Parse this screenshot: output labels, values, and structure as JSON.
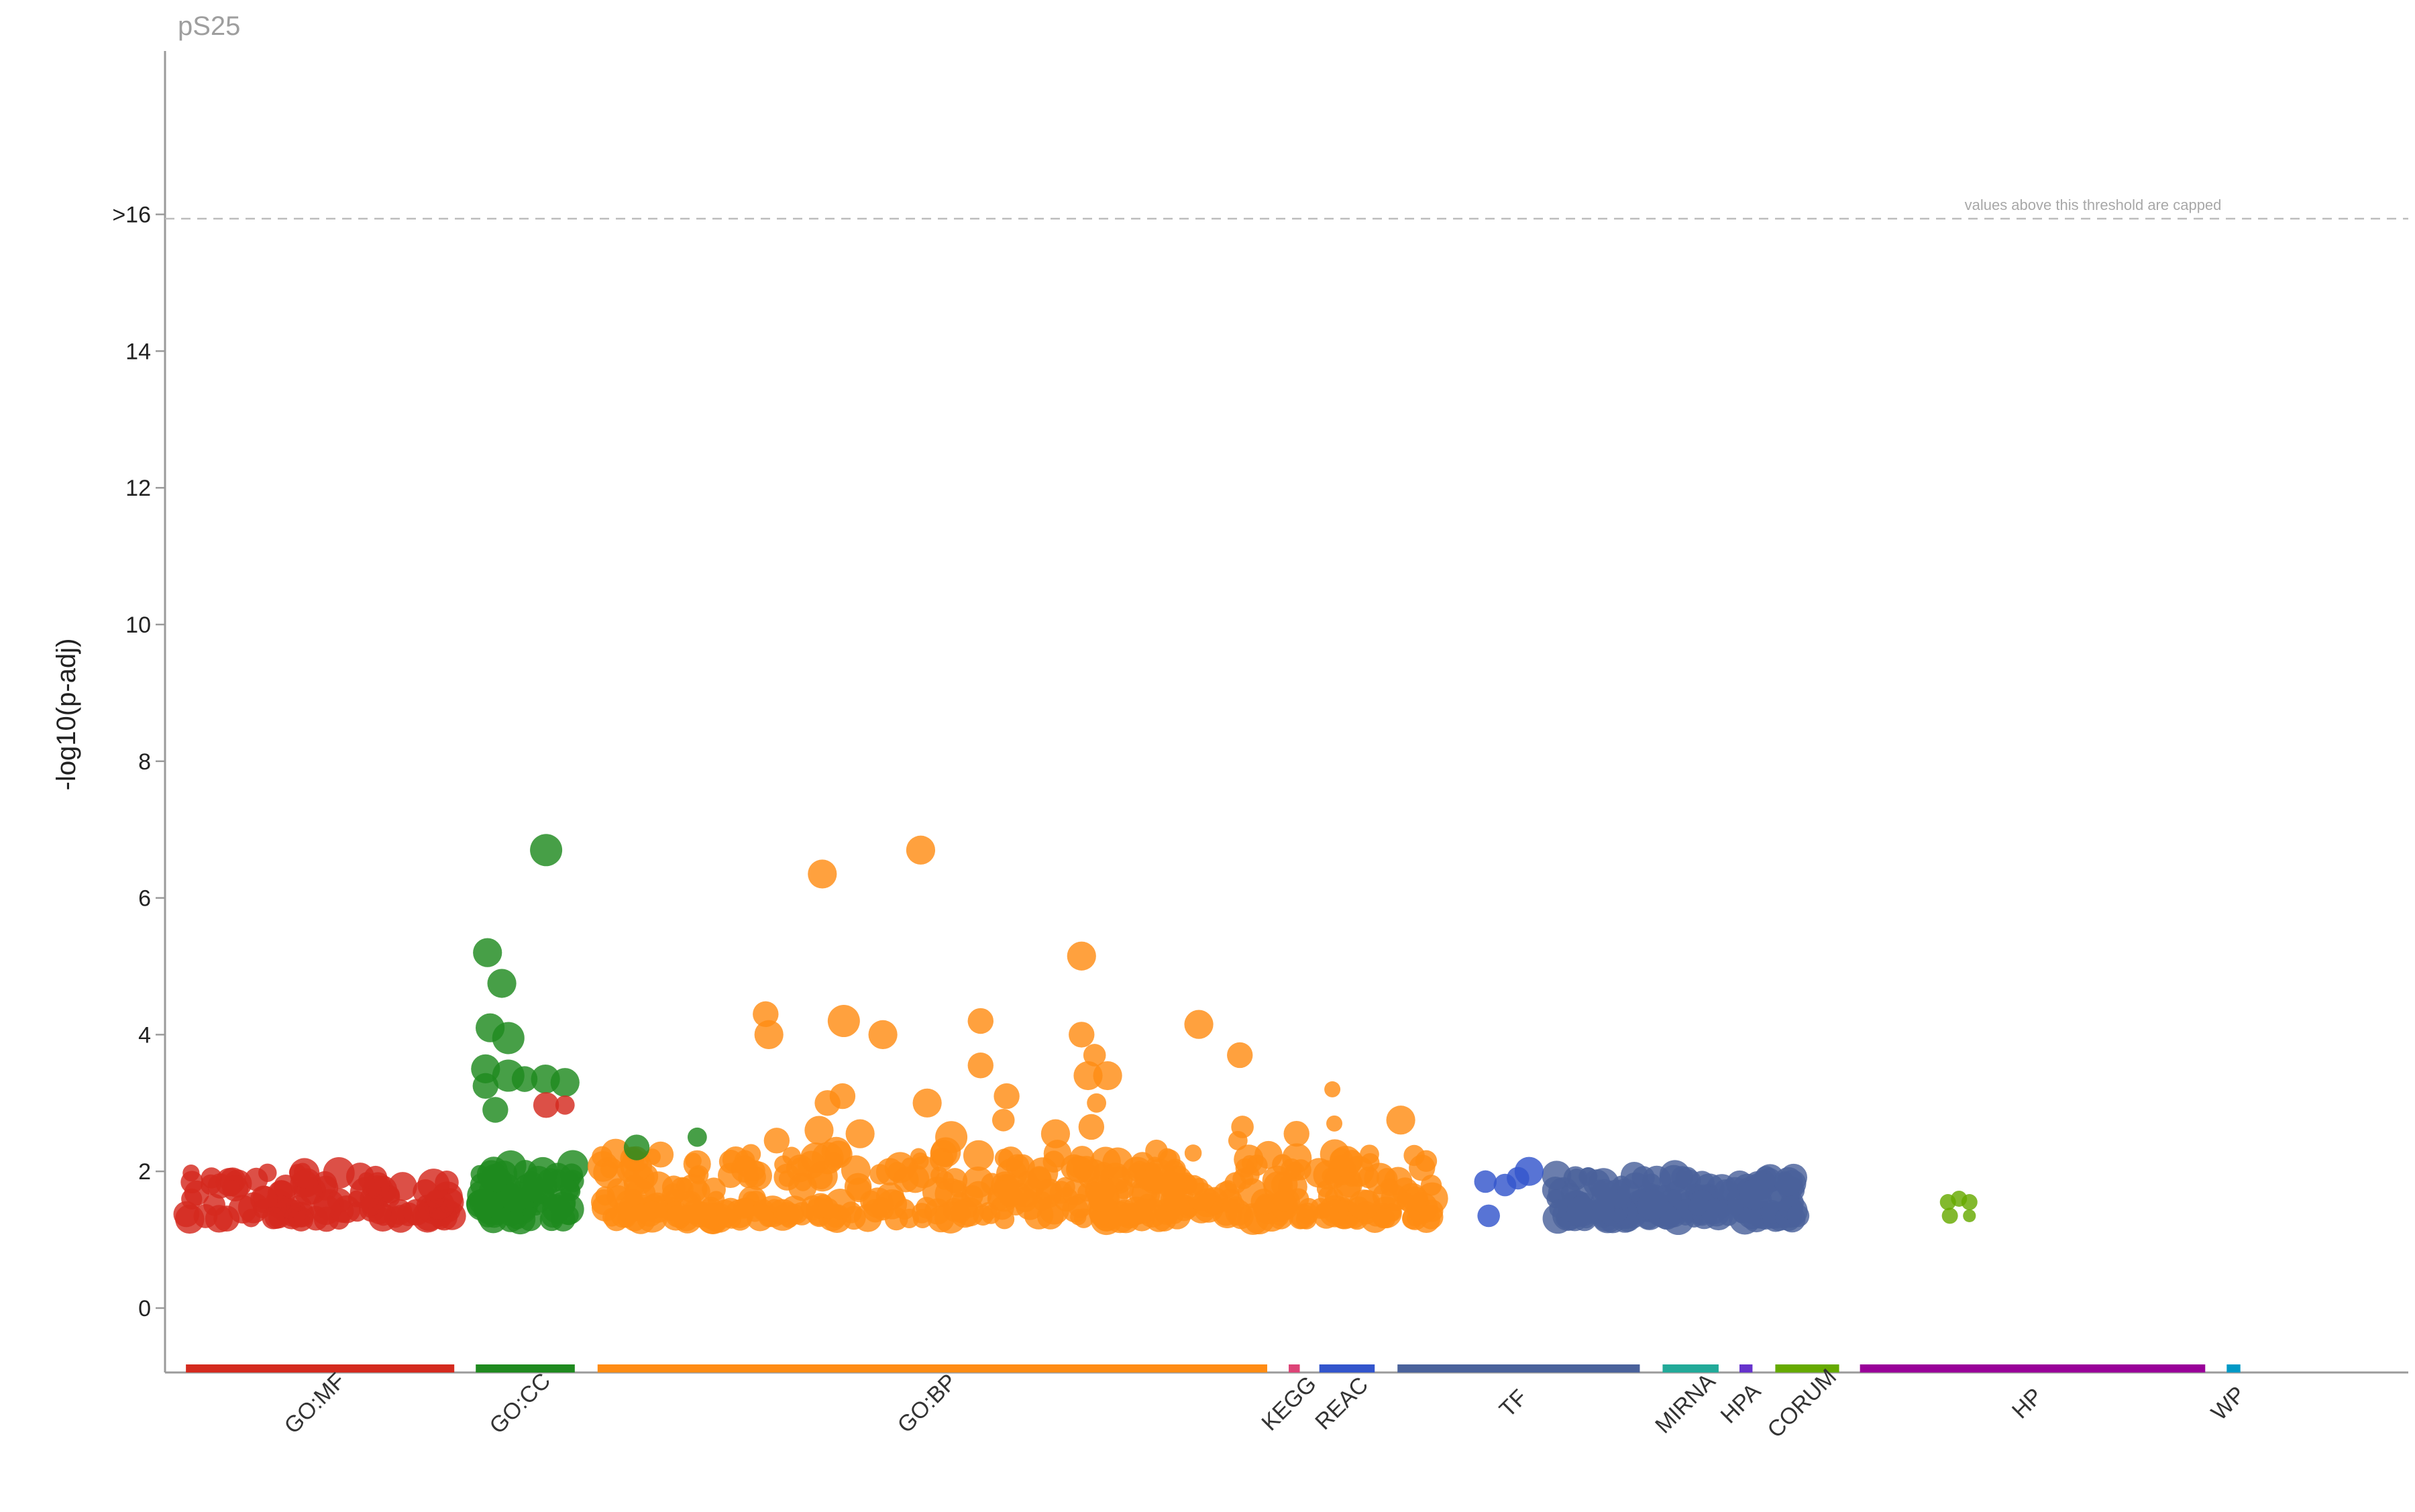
{
  "chart_data": {
    "type": "scatter",
    "title": "pS25",
    "ylabel": "-log10(p-adj)",
    "xlabel": "",
    "ylim": [
      -1,
      18.5
    ],
    "yticks": [
      {
        "value": 0,
        "label": "0"
      },
      {
        "value": 2,
        "label": "2"
      },
      {
        "value": 4,
        "label": "4"
      },
      {
        "value": 6,
        "label": "6"
      },
      {
        "value": 8,
        "label": "8"
      },
      {
        "value": 10,
        "label": "10"
      },
      {
        "value": 12,
        "label": "12"
      },
      {
        "value": 14,
        "label": "14"
      },
      {
        "value": 16,
        "label": ">16"
      }
    ],
    "threshold": {
      "value": 16,
      "note": "values above this threshold are capped"
    },
    "grid": false,
    "legend": "none",
    "x_range": [
      0,
      3450
    ],
    "sources": [
      {
        "name": "GO:MF",
        "color": "#d42a1e",
        "start": 30,
        "end": 442
      },
      {
        "name": "GO:CC",
        "color": "#1f8a1f",
        "start": 475,
        "end": 627
      },
      {
        "name": "GO:BP",
        "color": "#ff8c14",
        "start": 662,
        "end": 1690
      },
      {
        "name": "KEGG",
        "color": "#dd4477",
        "start": 1723,
        "end": 1740
      },
      {
        "name": "REAC",
        "color": "#3355cc",
        "start": 1770,
        "end": 1855
      },
      {
        "name": "TF",
        "color": "#4a629b",
        "start": 1890,
        "end": 2262
      },
      {
        "name": "MIRNA",
        "color": "#22aa99",
        "start": 2297,
        "end": 2383
      },
      {
        "name": "HPA",
        "color": "#6633cc",
        "start": 2415,
        "end": 2435
      },
      {
        "name": "CORUM",
        "color": "#66aa00",
        "start": 2470,
        "end": 2568
      },
      {
        "name": "HP",
        "color": "#990099",
        "start": 2600,
        "end": 3130
      },
      {
        "name": "WP",
        "color": "#0099c6",
        "start": 3163,
        "end": 3184
      }
    ],
    "highlighted_points": [
      {
        "source": "GO:CC",
        "x": 583,
        "y": 6.7,
        "size": 10
      },
      {
        "source": "GO:BP",
        "x": 1158,
        "y": 6.7,
        "size": 9
      },
      {
        "source": "GO:BP",
        "x": 1007,
        "y": 6.35,
        "size": 9
      },
      {
        "source": "GO:CC",
        "x": 493,
        "y": 5.2,
        "size": 9
      },
      {
        "source": "GO:BP",
        "x": 1405,
        "y": 5.15,
        "size": 9
      },
      {
        "source": "GO:CC",
        "x": 515,
        "y": 4.75,
        "size": 9
      },
      {
        "source": "GO:BP",
        "x": 920,
        "y": 4.3,
        "size": 8
      },
      {
        "source": "GO:BP",
        "x": 1040,
        "y": 4.2,
        "size": 10
      },
      {
        "source": "GO:BP",
        "x": 1250,
        "y": 4.2,
        "size": 8
      },
      {
        "source": "GO:BP",
        "x": 1585,
        "y": 4.15,
        "size": 9
      },
      {
        "source": "GO:CC",
        "x": 497,
        "y": 4.1,
        "size": 9
      },
      {
        "source": "GO:BP",
        "x": 925,
        "y": 4.0,
        "size": 9
      },
      {
        "source": "GO:BP",
        "x": 1100,
        "y": 4.0,
        "size": 9
      },
      {
        "source": "GO:BP",
        "x": 1405,
        "y": 4.0,
        "size": 8
      },
      {
        "source": "GO:CC",
        "x": 525,
        "y": 3.95,
        "size": 10
      },
      {
        "source": "GO:BP",
        "x": 1425,
        "y": 3.7,
        "size": 7
      },
      {
        "source": "GO:BP",
        "x": 1648,
        "y": 3.7,
        "size": 8
      },
      {
        "source": "GO:BP",
        "x": 1250,
        "y": 3.55,
        "size": 8
      },
      {
        "source": "GO:CC",
        "x": 490,
        "y": 3.5,
        "size": 9
      },
      {
        "source": "GO:BP",
        "x": 1445,
        "y": 3.4,
        "size": 9
      },
      {
        "source": "GO:BP",
        "x": 1415,
        "y": 3.4,
        "size": 9
      },
      {
        "source": "GO:CC",
        "x": 525,
        "y": 3.4,
        "size": 10
      },
      {
        "source": "GO:CC",
        "x": 550,
        "y": 3.35,
        "size": 8
      },
      {
        "source": "GO:CC",
        "x": 582,
        "y": 3.35,
        "size": 9
      },
      {
        "source": "GO:CC",
        "x": 612,
        "y": 3.3,
        "size": 9
      },
      {
        "source": "GO:CC",
        "x": 490,
        "y": 3.25,
        "size": 8
      },
      {
        "source": "GO:BP",
        "x": 1790,
        "y": 3.2,
        "size": 5
      },
      {
        "source": "GO:BP",
        "x": 1038,
        "y": 3.1,
        "size": 8
      },
      {
        "source": "GO:BP",
        "x": 1290,
        "y": 3.1,
        "size": 8
      },
      {
        "source": "GO:BP",
        "x": 1015,
        "y": 3.0,
        "size": 8
      },
      {
        "source": "GO:BP",
        "x": 1168,
        "y": 3.0,
        "size": 9
      },
      {
        "source": "GO:BP",
        "x": 1428,
        "y": 3.0,
        "size": 6
      },
      {
        "source": "GO:MF",
        "x": 583,
        "y": 2.97,
        "size": 8
      },
      {
        "source": "GO:MF",
        "x": 612,
        "y": 2.97,
        "size": 6
      },
      {
        "source": "GO:CC",
        "x": 505,
        "y": 2.9,
        "size": 8
      },
      {
        "source": "GO:BP",
        "x": 1895,
        "y": 2.75,
        "size": 9
      },
      {
        "source": "GO:BP",
        "x": 1285,
        "y": 2.75,
        "size": 7
      },
      {
        "source": "GO:BP",
        "x": 1793,
        "y": 2.7,
        "size": 5
      },
      {
        "source": "GO:BP",
        "x": 1652,
        "y": 2.65,
        "size": 7
      },
      {
        "source": "GO:BP",
        "x": 1420,
        "y": 2.65,
        "size": 8
      },
      {
        "source": "GO:BP",
        "x": 1735,
        "y": 2.55,
        "size": 8
      },
      {
        "source": "GO:BP",
        "x": 1002,
        "y": 2.6,
        "size": 9
      },
      {
        "source": "GO:BP",
        "x": 1065,
        "y": 2.55,
        "size": 9
      },
      {
        "source": "GO:BP",
        "x": 1205,
        "y": 2.5,
        "size": 10
      },
      {
        "source": "GO:BP",
        "x": 1365,
        "y": 2.55,
        "size": 9
      },
      {
        "source": "GO:BP",
        "x": 1645,
        "y": 2.45,
        "size": 6
      },
      {
        "source": "GO:BP",
        "x": 937,
        "y": 2.45,
        "size": 8
      },
      {
        "source": "GO:CC",
        "x": 815,
        "y": 2.5,
        "size": 6
      },
      {
        "source": "GO:CC",
        "x": 722,
        "y": 2.35,
        "size": 8
      },
      {
        "source": "GO:BP",
        "x": 1520,
        "y": 2.3,
        "size": 7
      },
      {
        "source": "GO:BP",
        "x": 1847,
        "y": 2.25,
        "size": 6
      },
      {
        "source": "GO:BP",
        "x": 1820,
        "y": 2.15,
        "size": 7
      },
      {
        "source": "GO:BP",
        "x": 1656,
        "y": 2.05,
        "size": 6
      },
      {
        "source": "REAC",
        "x": 2092,
        "y": 2.0,
        "size": 9
      },
      {
        "source": "REAC",
        "x": 2075,
        "y": 1.9,
        "size": 7
      },
      {
        "source": "REAC",
        "x": 2025,
        "y": 1.85,
        "size": 7
      },
      {
        "source": "REAC",
        "x": 2055,
        "y": 1.8,
        "size": 7
      },
      {
        "source": "REAC",
        "x": 2030,
        "y": 1.35,
        "size": 7
      },
      {
        "source": "TF",
        "x": 2490,
        "y": 1.85,
        "size": 9
      },
      {
        "source": "TF",
        "x": 2505,
        "y": 1.35,
        "size": 7
      },
      {
        "source": "CORUM",
        "x": 2735,
        "y": 1.55,
        "size": 5
      },
      {
        "source": "CORUM",
        "x": 2752,
        "y": 1.6,
        "size": 5
      },
      {
        "source": "CORUM",
        "x": 2768,
        "y": 1.55,
        "size": 5
      },
      {
        "source": "CORUM",
        "x": 2738,
        "y": 1.35,
        "size": 5
      },
      {
        "source": "CORUM",
        "x": 2768,
        "y": 1.35,
        "size": 4
      }
    ]
  }
}
